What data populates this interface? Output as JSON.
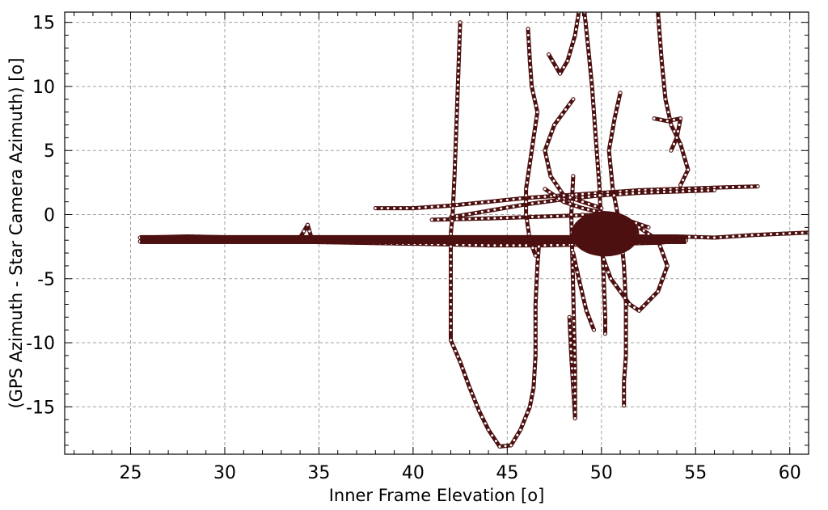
{
  "chart_data": {
    "type": "scatter",
    "xlabel": "Inner Frame Elevation [o]",
    "ylabel": "(GPS Azimuth - Star Camera Azimuth) [o]",
    "xlim": [
      21.5,
      61
    ],
    "ylim": [
      -18.7,
      15.8
    ],
    "x_ticks": [
      25,
      30,
      35,
      40,
      45,
      50,
      55,
      60
    ],
    "x_tick_labels": [
      "25",
      "30",
      "35",
      "40",
      "45",
      "50",
      "55",
      "60"
    ],
    "y_ticks": [
      15,
      10,
      5,
      0,
      -5,
      -10,
      -15
    ],
    "y_tick_labels": [
      "15",
      "10",
      "5",
      "0",
      "-5",
      "-10",
      "-15"
    ],
    "grid": true,
    "marker": "open-circle",
    "color": "#4d1010",
    "series": [
      {
        "values": [
          [
            25.5,
            -1.8
          ],
          [
            28,
            -1.7
          ],
          [
            31,
            -1.8
          ],
          [
            34,
            -1.8
          ],
          [
            34.4,
            -0.8
          ],
          [
            34.6,
            -1.8
          ],
          [
            37,
            -1.8
          ],
          [
            40,
            -1.9
          ],
          [
            43,
            -2.0
          ],
          [
            46,
            -1.9
          ],
          [
            48,
            -1.8
          ],
          [
            50,
            -1.8
          ],
          [
            52,
            -1.7
          ],
          [
            54,
            -1.7
          ],
          [
            56,
            -1.8
          ],
          [
            58,
            -1.6
          ],
          [
            61,
            -1.4
          ]
        ]
      },
      {
        "values": [
          [
            25.5,
            -2.1
          ],
          [
            29,
            -2.1
          ],
          [
            33,
            -2.1
          ],
          [
            37,
            -2.2
          ],
          [
            41,
            -2.3
          ],
          [
            44,
            -2.4
          ],
          [
            47,
            -2.4
          ],
          [
            50,
            -2.3
          ],
          [
            53,
            -2.2
          ],
          [
            54.5,
            -2.0
          ]
        ]
      },
      {
        "values": [
          [
            38,
            0.5
          ],
          [
            40,
            0.5
          ],
          [
            42,
            0.7
          ],
          [
            44,
            1.0
          ],
          [
            46,
            1.3
          ],
          [
            48,
            1.5
          ],
          [
            50,
            1.7
          ],
          [
            52,
            1.9
          ],
          [
            54,
            2.0
          ],
          [
            56,
            2.1
          ],
          [
            58.3,
            2.2
          ]
        ]
      },
      {
        "values": [
          [
            42,
            -0.2
          ],
          [
            44,
            0.3
          ],
          [
            46,
            0.8
          ],
          [
            48,
            1.2
          ],
          [
            50,
            1.5
          ],
          [
            52,
            1.7
          ],
          [
            54,
            1.8
          ],
          [
            56,
            1.9
          ]
        ]
      },
      {
        "values": [
          [
            41,
            -0.4
          ],
          [
            44,
            -0.3
          ],
          [
            46,
            -0.2
          ],
          [
            48,
            -0.1
          ],
          [
            50,
            0.0
          ]
        ]
      },
      {
        "values": [
          [
            42.5,
            15.0
          ],
          [
            42.4,
            11.0
          ],
          [
            42.3,
            7.0
          ],
          [
            42.2,
            3.0
          ],
          [
            42.1,
            0.0
          ],
          [
            42.0,
            -1.5
          ],
          [
            42.0,
            -4.0
          ],
          [
            42.0,
            -6.5
          ],
          [
            42.0,
            -9.0
          ],
          [
            42.0,
            -9.8
          ]
        ]
      },
      {
        "values": [
          [
            42.0,
            -9.8
          ],
          [
            42.5,
            -11.5
          ],
          [
            43.0,
            -13.5
          ],
          [
            43.5,
            -15.3
          ],
          [
            44.0,
            -16.8
          ],
          [
            44.6,
            -18.1
          ],
          [
            45.2,
            -18.0
          ],
          [
            45.7,
            -16.8
          ],
          [
            46.2,
            -15.0
          ],
          [
            46.4,
            -13.5
          ],
          [
            46.5,
            -11.0
          ],
          [
            46.5,
            -7.0
          ],
          [
            46.6,
            -4.0
          ],
          [
            46.7,
            -2.0
          ]
        ]
      },
      {
        "values": [
          [
            46.1,
            14.5
          ],
          [
            46.2,
            12.0
          ],
          [
            46.3,
            10.0
          ],
          [
            46.6,
            8.0
          ],
          [
            46.4,
            6.0
          ],
          [
            46.2,
            4.0
          ],
          [
            46.0,
            2.0
          ],
          [
            46.0,
            0.0
          ],
          [
            46.2,
            -2.0
          ],
          [
            46.5,
            -3.2
          ]
        ]
      },
      {
        "values": [
          [
            47.2,
            12.5
          ],
          [
            47.8,
            11.0
          ],
          [
            48.2,
            12.0
          ],
          [
            48.6,
            14.0
          ],
          [
            48.8,
            15.8
          ]
        ]
      },
      {
        "values": [
          [
            49.1,
            15.8
          ],
          [
            49.3,
            13.0
          ],
          [
            49.5,
            10.0
          ],
          [
            49.7,
            6.0
          ],
          [
            49.9,
            2.0
          ],
          [
            50.0,
            -1.5
          ],
          [
            50.1,
            -4.0
          ],
          [
            50.2,
            -8.0
          ],
          [
            50.2,
            -9.3
          ]
        ]
      },
      {
        "values": [
          [
            48.3,
            -8.0
          ],
          [
            48.4,
            -11.0
          ],
          [
            48.5,
            -13.5
          ],
          [
            48.6,
            -15.9
          ],
          [
            48.6,
            -12.0
          ],
          [
            48.5,
            -6.0
          ],
          [
            48.4,
            0.0
          ],
          [
            48.5,
            3.0
          ]
        ]
      },
      {
        "values": [
          [
            48.5,
            9.0
          ],
          [
            47.5,
            7.0
          ],
          [
            47.0,
            5.0
          ],
          [
            47.3,
            3.0
          ],
          [
            48.0,
            1.5
          ],
          [
            49.0,
            1.0
          ],
          [
            50.0,
            0.5
          ]
        ]
      },
      {
        "values": [
          [
            51.0,
            9.5
          ],
          [
            50.7,
            7.5
          ],
          [
            50.4,
            5.0
          ],
          [
            50.6,
            2.0
          ],
          [
            51.0,
            -1.0
          ],
          [
            51.2,
            -4.0
          ],
          [
            51.3,
            -7.0
          ],
          [
            51.3,
            -9.0
          ]
        ]
      },
      {
        "values": [
          [
            51.3,
            -9.0
          ],
          [
            51.3,
            -11.0
          ],
          [
            51.2,
            -13.0
          ],
          [
            51.2,
            -14.9
          ]
        ]
      },
      {
        "values": [
          [
            53.0,
            15.8
          ],
          [
            53.2,
            12.0
          ],
          [
            53.4,
            9.0
          ],
          [
            53.7,
            7.0
          ],
          [
            54.2,
            5.5
          ],
          [
            54.6,
            3.5
          ],
          [
            54.2,
            2.3
          ]
        ]
      },
      {
        "values": [
          [
            52.8,
            7.5
          ],
          [
            53.5,
            7.3
          ],
          [
            54.2,
            7.5
          ],
          [
            54.0,
            6.0
          ],
          [
            53.7,
            5.0
          ]
        ]
      },
      {
        "values": [
          [
            49.0,
            0.0
          ],
          [
            49.5,
            -1.5
          ],
          [
            50.0,
            -3.0
          ],
          [
            50.5,
            -5.0
          ],
          [
            51.0,
            -6.0
          ],
          [
            51.5,
            -7.0
          ],
          [
            52.0,
            -7.5
          ],
          [
            53.0,
            -6.0
          ],
          [
            53.5,
            -4.0
          ],
          [
            53.0,
            -2.0
          ],
          [
            52.0,
            -1.0
          ]
        ]
      },
      {
        "values": [
          [
            48.5,
            -3.0
          ],
          [
            48.8,
            -5.0
          ],
          [
            49.2,
            -7.5
          ],
          [
            49.6,
            -9.0
          ]
        ]
      },
      {
        "values": [
          [
            47.0,
            2.0
          ],
          [
            48.0,
            1.0
          ],
          [
            49.0,
            0.5
          ],
          [
            50.5,
            0.0
          ],
          [
            51.5,
            -0.5
          ],
          [
            52.5,
            -1.0
          ]
        ]
      }
    ]
  }
}
